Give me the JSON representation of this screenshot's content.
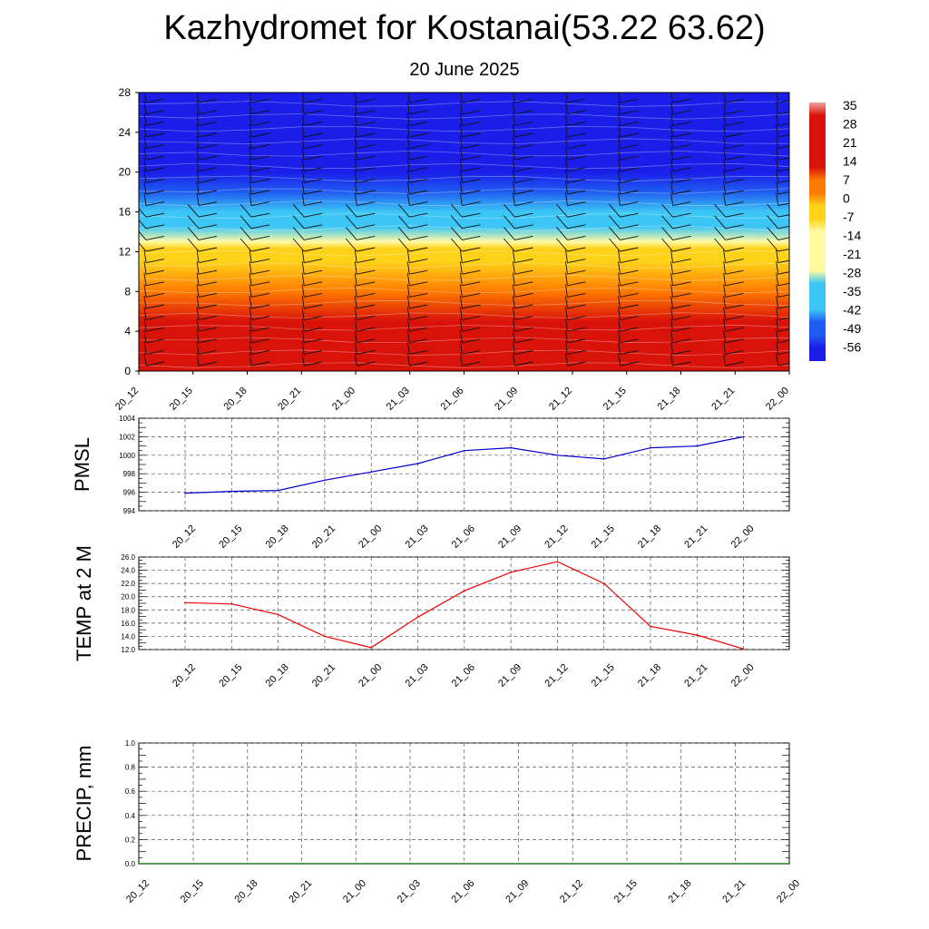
{
  "page": {
    "title": "Kazhydromet for Kostanai(53.22 63.62)",
    "subtitle": "20 June 2025"
  },
  "chart_data": [
    {
      "type": "heatmap",
      "name": "temperature-height-section",
      "x_ticks": [
        "20_12",
        "20_15",
        "20_18",
        "20_21",
        "21_00",
        "21_03",
        "21_06",
        "21_09",
        "21_12",
        "21_15",
        "21_18",
        "21_21",
        "22_00"
      ],
      "y_ticks": [
        "0",
        "4",
        "8",
        "12",
        "16",
        "20",
        "24",
        "28"
      ],
      "ylim": [
        0,
        28
      ],
      "colorbar_labels": [
        "35",
        "28",
        "21",
        "14",
        "7",
        "0",
        "-7",
        "-14",
        "-21",
        "-28",
        "-35",
        "-42",
        "-49",
        "-56"
      ],
      "color_range": [
        -63,
        42
      ],
      "temperature_profile": [
        {
          "y": 0,
          "value": 30
        },
        {
          "y": 2,
          "value": 26
        },
        {
          "y": 5,
          "value": 18
        },
        {
          "y": 8,
          "value": 10
        },
        {
          "y": 11,
          "value": 1
        },
        {
          "y": 12.3,
          "value": -4
        },
        {
          "y": 13,
          "value": -18
        },
        {
          "y": 14.5,
          "value": -28
        },
        {
          "y": 16,
          "value": -38
        },
        {
          "y": 18,
          "value": -48
        },
        {
          "y": 20,
          "value": -56
        },
        {
          "y": 24,
          "value": -60
        },
        {
          "y": 28,
          "value": -62
        }
      ],
      "colors": {
        "hot": "#d9130a",
        "warm": "#ff7a00",
        "mid": "#ffd21a",
        "zero": "#fffaa0",
        "cool": "#3cc6f5",
        "cold": "#1f5cf2",
        "coldest": "#1a1ee8",
        "extreme": "#7a2be0"
      }
    },
    {
      "type": "line",
      "name": "pmsl",
      "ylabel": "PMSL",
      "x": [
        "20_12",
        "20_15",
        "20_18",
        "20_21",
        "21_00",
        "21_03",
        "21_06",
        "21_09",
        "21_12",
        "21_15",
        "21_18",
        "21_21",
        "22_00"
      ],
      "values": [
        995.9,
        996.1,
        996.2,
        997.3,
        998.2,
        999.1,
        1000.5,
        1000.8,
        1000.0,
        999.6,
        1000.8,
        1001.0,
        1002.0
      ],
      "ylim": [
        994,
        1004
      ],
      "y_ticks": [
        "994",
        "996",
        "998",
        "1000",
        "1002",
        "1004"
      ],
      "color": "#0000cc"
    },
    {
      "type": "line",
      "name": "temp-2m",
      "ylabel": "TEMP at 2 M",
      "x": [
        "20_12",
        "20_15",
        "20_18",
        "20_21",
        "21_00",
        "21_03",
        "21_06",
        "21_09",
        "21_12",
        "21_15",
        "21_18",
        "21_21",
        "22_00"
      ],
      "values": [
        19.1,
        18.9,
        17.3,
        14.0,
        12.3,
        16.9,
        20.9,
        23.7,
        25.3,
        22.0,
        15.5,
        14.2,
        12.1
      ],
      "ylim": [
        12,
        26
      ],
      "y_ticks": [
        "12.0",
        "14.0",
        "16.0",
        "18.0",
        "20.0",
        "22.0",
        "24.0",
        "26.0"
      ],
      "color": "#ee0000"
    },
    {
      "type": "line",
      "name": "precip",
      "ylabel": "PRECIP, mm",
      "x": [
        "20_12",
        "20_15",
        "20_18",
        "20_21",
        "21_00",
        "21_03",
        "21_06",
        "21_09",
        "21_12",
        "21_15",
        "21_18",
        "21_21",
        "22_00"
      ],
      "values": [
        0,
        0,
        0,
        0,
        0,
        0,
        0,
        0,
        0,
        0,
        0,
        0,
        0
      ],
      "ylim": [
        0,
        1
      ],
      "y_ticks": [
        "0.0",
        "0.2",
        "0.4",
        "0.6",
        "0.8",
        "1.0"
      ],
      "color": "#006400"
    }
  ]
}
